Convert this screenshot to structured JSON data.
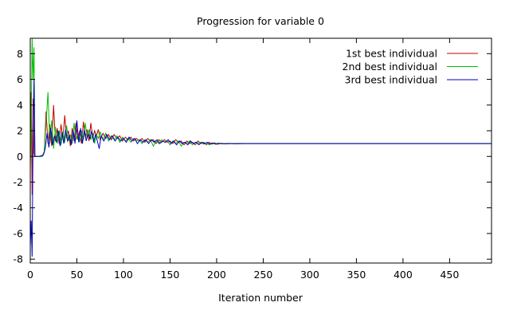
{
  "chart_data": {
    "type": "line",
    "title": "Progression for variable 0",
    "xlabel": "Iteration number",
    "ylabel": "",
    "xlim": [
      0,
      495
    ],
    "ylim": [
      -8.3,
      9.2
    ],
    "xticks": [
      0,
      50,
      100,
      150,
      200,
      250,
      300,
      350,
      400,
      450
    ],
    "yticks": [
      -8,
      -6,
      -4,
      -2,
      0,
      2,
      4,
      6,
      8
    ],
    "grid": false,
    "legend_position": "top-right",
    "series": [
      {
        "name": "1st best individual",
        "color": "#c00000",
        "points": [
          [
            0,
            0.5
          ],
          [
            1,
            5.0
          ],
          [
            2,
            -3.0
          ],
          [
            3,
            4.5
          ],
          [
            4,
            0.2
          ],
          [
            5,
            0.0
          ],
          [
            8,
            0.0
          ],
          [
            12,
            0.0
          ],
          [
            15,
            0.3
          ],
          [
            17,
            3.5
          ],
          [
            19,
            1.0
          ],
          [
            21,
            2.5
          ],
          [
            23,
            0.8
          ],
          [
            25,
            4.0
          ],
          [
            27,
            1.2
          ],
          [
            29,
            2.2
          ],
          [
            31,
            1.0
          ],
          [
            33,
            2.5
          ],
          [
            35,
            1.3
          ],
          [
            37,
            3.2
          ],
          [
            39,
            1.4
          ],
          [
            41,
            2.0
          ],
          [
            43,
            0.8
          ],
          [
            45,
            2.2
          ],
          [
            47,
            1.2
          ],
          [
            49,
            2.6
          ],
          [
            51,
            1.3
          ],
          [
            53,
            2.0
          ],
          [
            55,
            1.0
          ],
          [
            57,
            2.7
          ],
          [
            59,
            1.5
          ],
          [
            61,
            2.1
          ],
          [
            63,
            1.2
          ],
          [
            65,
            2.6
          ],
          [
            67,
            1.4
          ],
          [
            69,
            2.0
          ],
          [
            71,
            1.6
          ],
          [
            73,
            2.1
          ],
          [
            75,
            1.3
          ],
          [
            78,
            1.8
          ],
          [
            81,
            1.4
          ],
          [
            84,
            1.7
          ],
          [
            87,
            1.3
          ],
          [
            90,
            1.7
          ],
          [
            93,
            1.4
          ],
          [
            96,
            1.6
          ],
          [
            99,
            1.2
          ],
          [
            102,
            1.5
          ],
          [
            105,
            1.3
          ],
          [
            108,
            1.5
          ],
          [
            111,
            1.2
          ],
          [
            114,
            1.4
          ],
          [
            117,
            1.2
          ],
          [
            120,
            1.4
          ],
          [
            123,
            1.1
          ],
          [
            126,
            1.4
          ],
          [
            129,
            1.2
          ],
          [
            132,
            1.3
          ],
          [
            135,
            1.0
          ],
          [
            138,
            1.3
          ],
          [
            141,
            1.1
          ],
          [
            144,
            1.3
          ],
          [
            147,
            1.1
          ],
          [
            150,
            1.2
          ],
          [
            153,
            1.0
          ],
          [
            156,
            1.3
          ],
          [
            159,
            1.1
          ],
          [
            162,
            1.2
          ],
          [
            165,
            0.9
          ],
          [
            168,
            1.2
          ],
          [
            171,
            1.0
          ],
          [
            174,
            1.1
          ],
          [
            177,
            0.9
          ],
          [
            180,
            1.2
          ],
          [
            183,
            1.0
          ],
          [
            186,
            1.1
          ],
          [
            189,
            0.9
          ],
          [
            192,
            1.1
          ],
          [
            195,
            0.95
          ],
          [
            198,
            1.05
          ],
          [
            201,
            0.95
          ],
          [
            205,
            1.02
          ],
          [
            210,
            0.97
          ],
          [
            215,
            1.01
          ],
          [
            220,
            0.98
          ],
          [
            230,
            1.0
          ],
          [
            260,
            1.0
          ],
          [
            300,
            1.0
          ],
          [
            400,
            1.0
          ],
          [
            495,
            1.0
          ]
        ]
      },
      {
        "name": "2nd best individual",
        "color": "#00c000",
        "points": [
          [
            0,
            -1.0
          ],
          [
            1,
            2.0
          ],
          [
            2,
            9.2
          ],
          [
            3,
            6.0
          ],
          [
            4,
            8.5
          ],
          [
            5,
            0.0
          ],
          [
            9,
            0.0
          ],
          [
            13,
            0.0
          ],
          [
            15,
            0.4
          ],
          [
            17,
            2.6
          ],
          [
            19,
            5.0
          ],
          [
            21,
            1.0
          ],
          [
            23,
            2.8
          ],
          [
            25,
            0.6
          ],
          [
            27,
            2.3
          ],
          [
            29,
            1.0
          ],
          [
            31,
            2.0
          ],
          [
            33,
            0.9
          ],
          [
            35,
            1.9
          ],
          [
            37,
            1.1
          ],
          [
            39,
            2.4
          ],
          [
            41,
            1.2
          ],
          [
            43,
            1.7
          ],
          [
            45,
            1.0
          ],
          [
            47,
            2.6
          ],
          [
            49,
            1.3
          ],
          [
            51,
            1.8
          ],
          [
            53,
            1.1
          ],
          [
            55,
            2.0
          ],
          [
            57,
            1.3
          ],
          [
            59,
            2.6
          ],
          [
            61,
            1.4
          ],
          [
            63,
            2.1
          ],
          [
            65,
            1.3
          ],
          [
            67,
            1.8
          ],
          [
            69,
            1.0
          ],
          [
            71,
            1.7
          ],
          [
            73,
            1.4
          ],
          [
            75,
            1.9
          ],
          [
            78,
            1.3
          ],
          [
            81,
            1.8
          ],
          [
            84,
            1.2
          ],
          [
            87,
            1.6
          ],
          [
            90,
            1.3
          ],
          [
            93,
            1.6
          ],
          [
            96,
            1.1
          ],
          [
            99,
            1.5
          ],
          [
            102,
            1.2
          ],
          [
            105,
            1.4
          ],
          [
            108,
            1.1
          ],
          [
            111,
            1.4
          ],
          [
            114,
            1.2
          ],
          [
            117,
            1.3
          ],
          [
            120,
            1.0
          ],
          [
            123,
            1.3
          ],
          [
            126,
            1.1
          ],
          [
            129,
            1.3
          ],
          [
            132,
            0.8
          ],
          [
            135,
            1.2
          ],
          [
            138,
            1.0
          ],
          [
            141,
            1.3
          ],
          [
            144,
            1.1
          ],
          [
            147,
            1.2
          ],
          [
            150,
            0.9
          ],
          [
            153,
            1.2
          ],
          [
            156,
            1.0
          ],
          [
            159,
            1.2
          ],
          [
            162,
            0.8
          ],
          [
            165,
            1.1
          ],
          [
            168,
            1.0
          ],
          [
            171,
            1.2
          ],
          [
            174,
            0.9
          ],
          [
            177,
            1.1
          ],
          [
            180,
            1.0
          ],
          [
            183,
            1.1
          ],
          [
            186,
            0.95
          ],
          [
            189,
            1.05
          ],
          [
            192,
            0.9
          ],
          [
            195,
            1.05
          ],
          [
            198,
            0.97
          ],
          [
            201,
            1.03
          ],
          [
            205,
            0.98
          ],
          [
            210,
            1.01
          ],
          [
            215,
            0.99
          ],
          [
            220,
            1.0
          ],
          [
            230,
            1.0
          ],
          [
            260,
            1.0
          ],
          [
            300,
            1.0
          ],
          [
            400,
            1.0
          ],
          [
            495,
            1.0
          ]
        ]
      },
      {
        "name": "3rd best individual",
        "color": "#0000c0",
        "points": [
          [
            0,
            -7.0
          ],
          [
            1,
            -5.0
          ],
          [
            2,
            -7.8
          ],
          [
            3,
            2.0
          ],
          [
            4,
            6.0
          ],
          [
            5,
            0.0
          ],
          [
            10,
            0.0
          ],
          [
            14,
            0.1
          ],
          [
            16,
            0.6
          ],
          [
            18,
            1.8
          ],
          [
            20,
            0.7
          ],
          [
            22,
            2.2
          ],
          [
            24,
            0.9
          ],
          [
            26,
            1.6
          ],
          [
            28,
            1.1
          ],
          [
            30,
            2.0
          ],
          [
            32,
            0.8
          ],
          [
            34,
            1.9
          ],
          [
            36,
            1.0
          ],
          [
            38,
            2.1
          ],
          [
            40,
            1.2
          ],
          [
            42,
            1.6
          ],
          [
            44,
            0.9
          ],
          [
            46,
            2.0
          ],
          [
            48,
            1.0
          ],
          [
            50,
            2.8
          ],
          [
            52,
            1.1
          ],
          [
            54,
            2.2
          ],
          [
            56,
            1.0
          ],
          [
            58,
            2.1
          ],
          [
            60,
            1.2
          ],
          [
            62,
            1.8
          ],
          [
            64,
            1.4
          ],
          [
            66,
            2.0
          ],
          [
            68,
            1.1
          ],
          [
            70,
            1.7
          ],
          [
            72,
            1.2
          ],
          [
            74,
            0.6
          ],
          [
            76,
            1.6
          ],
          [
            79,
            1.2
          ],
          [
            82,
            1.7
          ],
          [
            85,
            1.3
          ],
          [
            88,
            1.6
          ],
          [
            91,
            1.2
          ],
          [
            94,
            1.5
          ],
          [
            97,
            1.2
          ],
          [
            100,
            1.4
          ],
          [
            103,
            1.1
          ],
          [
            106,
            1.5
          ],
          [
            109,
            1.2
          ],
          [
            112,
            1.4
          ],
          [
            115,
            1.0
          ],
          [
            118,
            1.3
          ],
          [
            121,
            1.1
          ],
          [
            124,
            1.3
          ],
          [
            127,
            1.0
          ],
          [
            130,
            1.3
          ],
          [
            133,
            1.1
          ],
          [
            136,
            1.3
          ],
          [
            139,
            1.0
          ],
          [
            142,
            1.2
          ],
          [
            145,
            1.1
          ],
          [
            148,
            1.3
          ],
          [
            151,
            1.0
          ],
          [
            154,
            1.2
          ],
          [
            157,
            0.9
          ],
          [
            160,
            1.2
          ],
          [
            163,
            1.0
          ],
          [
            166,
            1.1
          ],
          [
            169,
            0.9
          ],
          [
            172,
            1.2
          ],
          [
            175,
            1.0
          ],
          [
            178,
            1.1
          ],
          [
            181,
            0.9
          ],
          [
            184,
            1.1
          ],
          [
            187,
            1.0
          ],
          [
            190,
            1.1
          ],
          [
            193,
            0.95
          ],
          [
            196,
            1.05
          ],
          [
            199,
            0.95
          ],
          [
            203,
            1.02
          ],
          [
            208,
            0.98
          ],
          [
            213,
            1.01
          ],
          [
            218,
            0.99
          ],
          [
            225,
            1.0
          ],
          [
            260,
            1.0
          ],
          [
            300,
            1.0
          ],
          [
            400,
            1.0
          ],
          [
            495,
            1.0
          ]
        ]
      }
    ]
  }
}
